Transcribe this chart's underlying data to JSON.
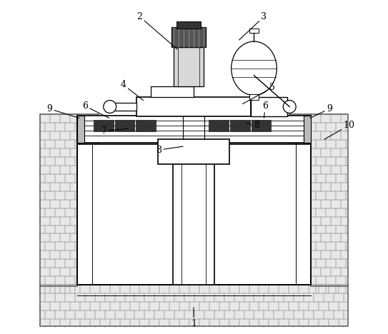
{
  "fig_width": 5.43,
  "fig_height": 4.68,
  "dpi": 100,
  "bg_color": "#ffffff",
  "line_color": "#000000",
  "brick_fc": "#e8e8e8",
  "brick_ec": "#666666"
}
